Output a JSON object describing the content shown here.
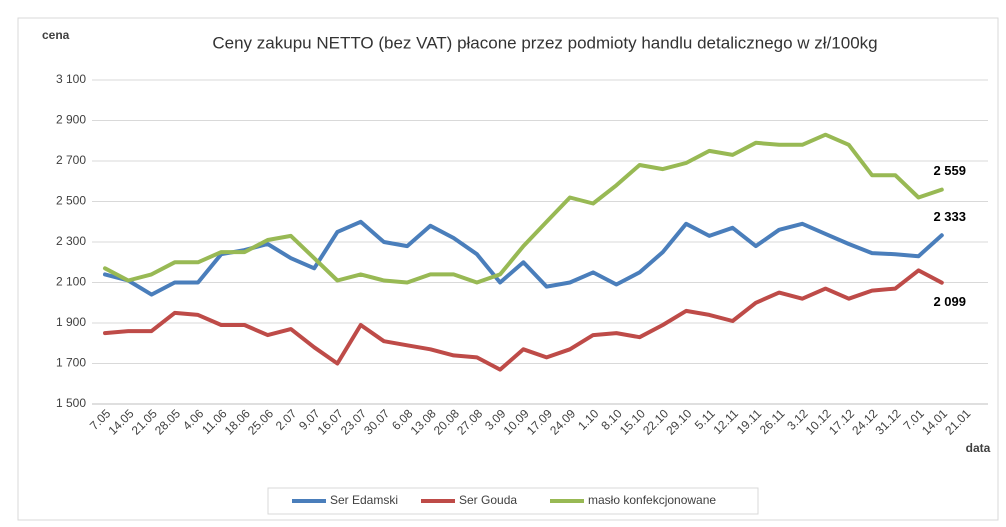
{
  "chart_data": {
    "type": "line",
    "title": "Ceny zakupu NETTO (bez VAT) płacone przez podmioty handlu detalicznego w zł/100kg",
    "y_label": "cena",
    "x_label": "data",
    "categories": [
      "7.05",
      "14.05",
      "21.05",
      "28.05",
      "4.06",
      "11.06",
      "18.06",
      "25.06",
      "2.07",
      "9.07",
      "16.07",
      "23.07",
      "30.07",
      "6.08",
      "13.08",
      "20.08",
      "27.08",
      "3.09",
      "10.09",
      "17.09",
      "24.09",
      "1.10",
      "8.10",
      "15.10",
      "22.10",
      "29.10",
      "5.11",
      "12.11",
      "19.11",
      "26.11",
      "3.12",
      "10.12",
      "17.12",
      "24.12",
      "31.12",
      "7.01",
      "14.01",
      "21.01"
    ],
    "series": [
      {
        "name": "Ser Edamski",
        "color": "#4a7ebb",
        "values": [
          2140,
          2110,
          2040,
          2100,
          2100,
          2240,
          2260,
          2290,
          2220,
          2170,
          2350,
          2400,
          2300,
          2280,
          2380,
          2320,
          2240,
          2100,
          2200,
          2080,
          2100,
          2150,
          2090,
          2150,
          2250,
          2390,
          2330,
          2370,
          2280,
          2360,
          2390,
          2340,
          2290,
          2245,
          2240,
          2230,
          2333,
          null
        ],
        "value_labels": [
          null,
          null,
          null,
          null,
          null,
          null,
          null,
          null,
          null,
          null,
          null,
          null,
          null,
          null,
          null,
          null,
          null,
          null,
          null,
          null,
          null,
          null,
          null,
          null,
          null,
          null,
          null,
          null,
          null,
          null,
          null,
          null,
          null,
          null,
          null,
          null,
          "2 333",
          null
        ]
      },
      {
        "name": "Ser Gouda",
        "color": "#be4b48",
        "values": [
          1850,
          1860,
          1860,
          1950,
          1940,
          1890,
          1890,
          1840,
          1870,
          1780,
          1700,
          1890,
          1810,
          1790,
          1770,
          1740,
          1730,
          1670,
          1770,
          1730,
          1770,
          1840,
          1850,
          1830,
          1890,
          1960,
          1940,
          1910,
          2000,
          2050,
          2020,
          2070,
          2020,
          2060,
          2070,
          2160,
          2099,
          null
        ],
        "value_labels": [
          null,
          null,
          null,
          null,
          null,
          null,
          null,
          null,
          null,
          null,
          null,
          null,
          null,
          null,
          null,
          null,
          null,
          null,
          null,
          null,
          null,
          null,
          null,
          null,
          null,
          null,
          null,
          null,
          null,
          null,
          null,
          null,
          null,
          null,
          null,
          null,
          "2 099",
          null
        ]
      },
      {
        "name": "masło konfekcjonowane",
        "color": "#98b954",
        "values": [
          2170,
          2110,
          2140,
          2200,
          2200,
          2250,
          2250,
          2310,
          2330,
          2220,
          2110,
          2140,
          2110,
          2100,
          2140,
          2140,
          2100,
          2140,
          2280,
          2400,
          2520,
          2490,
          2580,
          2680,
          2660,
          2690,
          2750,
          2730,
          2790,
          2780,
          2780,
          2830,
          2780,
          2630,
          2630,
          2520,
          2559,
          null
        ],
        "value_labels": [
          null,
          null,
          null,
          null,
          null,
          null,
          null,
          null,
          null,
          null,
          null,
          null,
          null,
          null,
          null,
          null,
          null,
          null,
          null,
          null,
          null,
          null,
          null,
          null,
          null,
          null,
          null,
          null,
          null,
          null,
          null,
          null,
          null,
          null,
          null,
          null,
          "2 559",
          null
        ]
      }
    ],
    "ylim": [
      1500,
      3100
    ],
    "yticks": [
      {
        "value": 1500,
        "label": "1 500"
      },
      {
        "value": 1700,
        "label": "1 700"
      },
      {
        "value": 1900,
        "label": "1 900"
      },
      {
        "value": 2100,
        "label": "2 100"
      },
      {
        "value": 2300,
        "label": "2 300"
      },
      {
        "value": 2500,
        "label": "2 500"
      },
      {
        "value": 2700,
        "label": "2 700"
      },
      {
        "value": 2900,
        "label": "2 900"
      },
      {
        "value": 3100,
        "label": "3 100"
      }
    ],
    "grid": true,
    "legend": "bottom"
  }
}
